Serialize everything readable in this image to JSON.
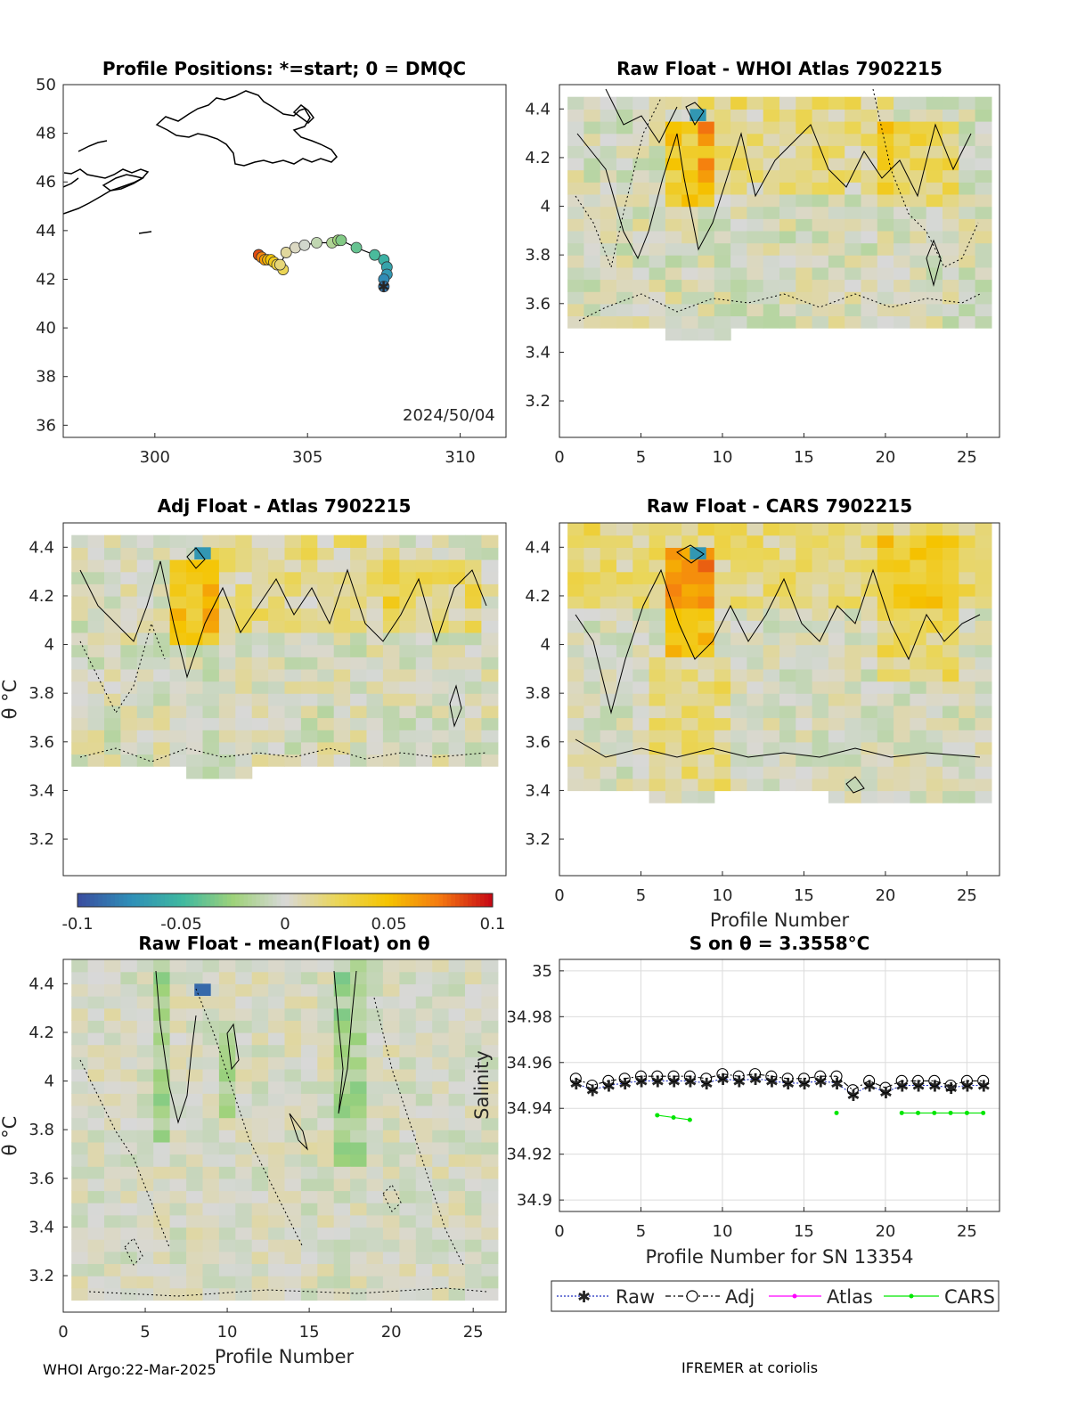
{
  "footer": {
    "left": "WHOI Argo:22-Mar-2025",
    "right": "IFREMER at coriolis"
  },
  "colorbar": {
    "ticks": [
      "-0.1",
      "-0.05",
      "0",
      "0.05",
      "0.1"
    ],
    "colors": [
      "#3a4fa0",
      "#2f8fb8",
      "#3fb8a0",
      "#9fd27a",
      "#d8d8d8",
      "#ead65a",
      "#f5c400",
      "#f57a10",
      "#c80a14"
    ]
  },
  "map": {
    "title": "Profile Positions: *=start; 0 = DMQC",
    "date": "2024/50/04",
    "xticks": [
      "300",
      "305",
      "310"
    ],
    "yticks": [
      "36",
      "38",
      "40",
      "42",
      "44",
      "46",
      "48",
      "50"
    ]
  },
  "panels": {
    "p1": {
      "title": "Raw Float - WHOI Atlas  7902215"
    },
    "p2": {
      "title": "Adj Float - Atlas  7902215",
      "ylabel": "θ °C"
    },
    "p3": {
      "title": "Raw Float - CARS  7902215",
      "xlabel": "Profile Number"
    },
    "p4": {
      "title": "Raw Float - mean(Float) on θ",
      "ylabel": "θ °C",
      "xlabel": "Profile Number"
    }
  },
  "theta_ticks": [
    "3.2",
    "3.4",
    "3.6",
    "3.8",
    "4",
    "4.2",
    "4.4"
  ],
  "profile_ticks": [
    "0",
    "5",
    "10",
    "15",
    "20",
    "25"
  ],
  "salinity": {
    "title": "S on θ = 3.3558°C",
    "xlabel": "Profile Number for SN 13354",
    "ylabel": "Salinity",
    "yticks": [
      "34.9",
      "34.92",
      "34.94",
      "34.96",
      "34.98",
      "35"
    ],
    "legend": [
      "Raw",
      "Adj",
      "Atlas",
      "CARS"
    ]
  },
  "chart_data": [
    {
      "type": "scatter",
      "title": "Profile Positions: *=start; 0 = DMQC",
      "xlim": [
        297,
        311.5
      ],
      "ylim": [
        35.5,
        50
      ],
      "x": [
        307.5,
        307.5,
        307.6,
        307.6,
        307.5,
        307.2,
        306.6,
        306.1,
        306.0,
        305.8,
        305.3,
        304.9,
        304.6,
        304.3,
        304.1,
        304.2,
        304.0,
        303.9,
        303.8,
        303.7,
        303.6,
        303.5,
        303.5,
        303.4,
        303.4,
        303.4
      ],
      "y": [
        41.7,
        42.0,
        42.2,
        42.5,
        42.8,
        43.0,
        43.3,
        43.6,
        43.6,
        43.5,
        43.5,
        43.4,
        43.3,
        43.1,
        42.6,
        42.4,
        42.6,
        42.7,
        42.8,
        42.8,
        42.8,
        42.9,
        42.9,
        43.0,
        43.0,
        43.0
      ]
    },
    {
      "type": "line",
      "title": "S on θ = 3.3558°C",
      "xlabel": "Profile Number for SN 13354",
      "ylabel": "Salinity",
      "xlim": [
        0,
        27
      ],
      "ylim": [
        34.895,
        35.005
      ],
      "series": [
        {
          "name": "Raw",
          "x": [
            1,
            2,
            3,
            4,
            5,
            6,
            7,
            8,
            9,
            10,
            11,
            12,
            13,
            14,
            15,
            16,
            17,
            18,
            19,
            20,
            21,
            22,
            23,
            24,
            25,
            26
          ],
          "values": [
            34.951,
            34.948,
            34.95,
            34.951,
            34.952,
            34.952,
            34.952,
            34.952,
            34.951,
            34.953,
            34.952,
            34.953,
            34.952,
            34.951,
            34.951,
            34.952,
            34.951,
            34.946,
            34.95,
            34.947,
            34.95,
            34.95,
            34.95,
            34.949,
            34.95,
            34.95
          ]
        },
        {
          "name": "Adj",
          "x": [
            1,
            2,
            3,
            4,
            5,
            6,
            7,
            8,
            9,
            10,
            11,
            12,
            13,
            14,
            15,
            16,
            17,
            18,
            19,
            20,
            21,
            22,
            23,
            24,
            25,
            26
          ],
          "values": [
            34.953,
            34.95,
            34.952,
            34.953,
            34.954,
            34.954,
            34.954,
            34.954,
            34.953,
            34.955,
            34.954,
            34.955,
            34.954,
            34.953,
            34.953,
            34.954,
            34.954,
            34.948,
            34.952,
            34.949,
            34.952,
            34.952,
            34.952,
            34.95,
            34.952,
            34.952
          ]
        },
        {
          "name": "Atlas",
          "x": [],
          "values": []
        },
        {
          "name": "CARS",
          "x": [
            6,
            7,
            8,
            17,
            21,
            22,
            23,
            24,
            25,
            26
          ],
          "values": [
            34.937,
            34.936,
            34.935,
            34.938,
            34.938,
            34.938,
            34.938,
            34.938,
            34.938,
            34.938
          ]
        }
      ]
    }
  ]
}
